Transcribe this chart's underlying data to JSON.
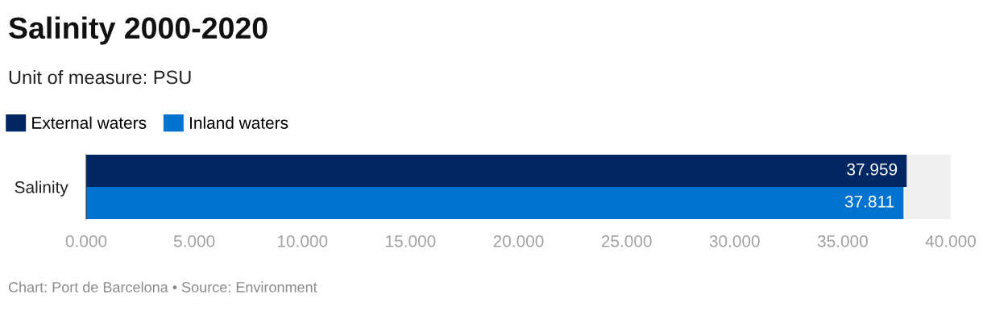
{
  "chart_data": {
    "type": "bar",
    "orientation": "horizontal",
    "title": "Salinity 2000-2020",
    "subtitle": "Unit of measure: PSU",
    "categories": [
      "Salinity"
    ],
    "series": [
      {
        "name": "External waters",
        "color": "#002663",
        "values": [
          37.959
        ]
      },
      {
        "name": "Inland waters",
        "color": "#0073d1",
        "values": [
          37.811
        ]
      }
    ],
    "data_labels": true,
    "xlim": [
      0,
      40
    ],
    "xticks": [
      {
        "value": 0,
        "label": "0.000"
      },
      {
        "value": 5,
        "label": "5.000"
      },
      {
        "value": 10,
        "label": "10.000"
      },
      {
        "value": 15,
        "label": "15.000"
      },
      {
        "value": 20,
        "label": "20.000"
      },
      {
        "value": 25,
        "label": "25.000"
      },
      {
        "value": 30,
        "label": "30.000"
      },
      {
        "value": 35,
        "label": "35.000"
      },
      {
        "value": 40,
        "label": "40.000"
      }
    ],
    "grid": false,
    "legend": "top left",
    "annotations": [
      "Chart: Port de Barcelona • Source: Environment"
    ]
  }
}
